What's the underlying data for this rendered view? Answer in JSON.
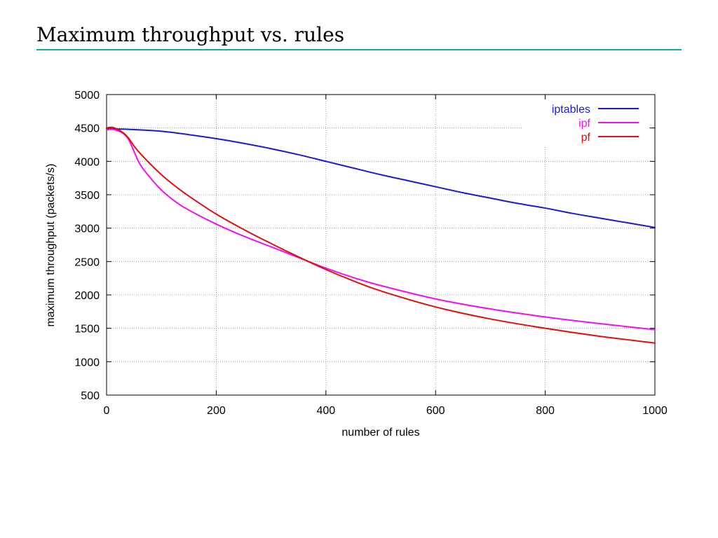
{
  "slide": {
    "title": "Maximum throughput vs. rules",
    "accent_color": "#1aa3b0"
  },
  "chart_data": {
    "type": "line",
    "title": "",
    "xlabel": "number of rules",
    "ylabel": "maximum throughput (packets/s)",
    "xlim": [
      0,
      1000
    ],
    "ylim": [
      500,
      5000
    ],
    "xticks": [
      0,
      200,
      400,
      600,
      800,
      1000
    ],
    "yticks": [
      500,
      1000,
      1500,
      2000,
      2500,
      3000,
      3500,
      4000,
      4500,
      5000
    ],
    "grid": true,
    "legend_position": "top-right",
    "series": [
      {
        "name": "iptables",
        "color": "#1b1bcc",
        "x": [
          0,
          20,
          50,
          100,
          150,
          200,
          250,
          300,
          350,
          400,
          450,
          500,
          550,
          600,
          650,
          700,
          750,
          800,
          850,
          900,
          950,
          1000
        ],
        "y": [
          4490,
          4485,
          4475,
          4450,
          4400,
          4340,
          4270,
          4190,
          4100,
          4000,
          3900,
          3800,
          3710,
          3620,
          3530,
          3450,
          3370,
          3300,
          3220,
          3150,
          3080,
          3010
        ]
      },
      {
        "name": "ipf",
        "color": "#ee11ee",
        "x": [
          0,
          10,
          20,
          30,
          40,
          50,
          60,
          75,
          100,
          125,
          150,
          200,
          250,
          300,
          350,
          400,
          450,
          500,
          600,
          700,
          800,
          900,
          1000
        ],
        "y": [
          4470,
          4480,
          4460,
          4420,
          4330,
          4150,
          3970,
          3800,
          3570,
          3400,
          3270,
          3060,
          2880,
          2720,
          2560,
          2400,
          2260,
          2140,
          1940,
          1790,
          1670,
          1570,
          1480
        ]
      },
      {
        "name": "pf",
        "color": "#dd1111",
        "x": [
          0,
          10,
          20,
          30,
          40,
          50,
          60,
          75,
          100,
          125,
          150,
          200,
          250,
          300,
          350,
          400,
          450,
          500,
          600,
          700,
          800,
          900,
          1000
        ],
        "y": [
          4500,
          4510,
          4480,
          4430,
          4350,
          4230,
          4130,
          4000,
          3800,
          3630,
          3480,
          3210,
          2980,
          2770,
          2570,
          2380,
          2210,
          2060,
          1820,
          1640,
          1500,
          1380,
          1280
        ]
      }
    ]
  }
}
